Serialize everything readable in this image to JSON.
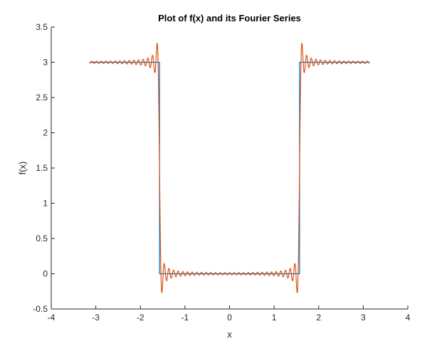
{
  "chart_data": {
    "type": "line",
    "title": "Plot of f(x) and its Fourier Series",
    "xlabel": "x",
    "ylabel": "f(x)",
    "xlim": [
      -4,
      4
    ],
    "ylim": [
      -0.5,
      3.5
    ],
    "xticks": [
      "-4",
      "-3",
      "-2",
      "-1",
      "0",
      "1",
      "2",
      "3",
      "4"
    ],
    "yticks": [
      "-0.5",
      "0",
      "0.5",
      "1",
      "1.5",
      "2",
      "2.5",
      "3",
      "3.5"
    ],
    "grid": false,
    "box": "left-bottom",
    "colors": {
      "f": "#0072BD",
      "fourier": "#D95319",
      "axis": "#262626"
    },
    "series": [
      {
        "kind": "function",
        "x": [
          -3.1416,
          -1.5708,
          -1.5708,
          1.5708,
          1.5708,
          3.1416
        ],
        "y": [
          3,
          3,
          0,
          0,
          3,
          3
        ]
      },
      {
        "kind": "fourier-series",
        "x": [
          -3.1416,
          -2.5,
          -2.0,
          -1.7,
          -1.62,
          -1.6,
          -1.5708,
          -1.55,
          -1.52,
          -1.45,
          -1.2,
          -0.6,
          0,
          0.6,
          1.2,
          1.45,
          1.52,
          1.55,
          1.5708,
          1.6,
          1.62,
          1.7,
          2.0,
          2.5,
          3.1416
        ],
        "y": [
          3,
          3.01,
          2.99,
          3.05,
          3.17,
          2.9,
          1.5,
          0.1,
          -0.18,
          0.05,
          0.01,
          0,
          0,
          0,
          0.01,
          0.05,
          -0.18,
          0.1,
          1.5,
          2.9,
          3.17,
          3.05,
          2.99,
          3.01,
          3
        ]
      }
    ]
  }
}
